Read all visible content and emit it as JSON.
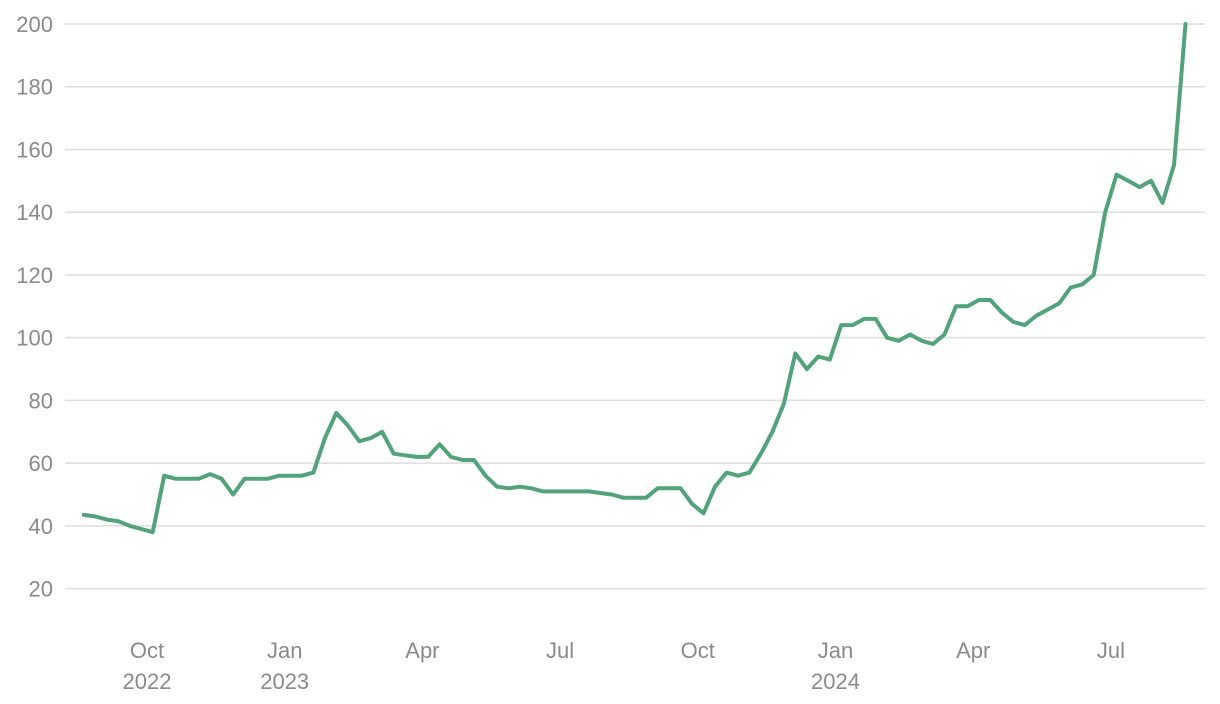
{
  "chart_data": {
    "type": "line",
    "x": [
      "2022-08",
      "2022-08",
      "2022-08",
      "2022-08",
      "2022-09",
      "2022-09",
      "2022-09",
      "2022-09",
      "2022-10",
      "2022-10",
      "2022-10",
      "2022-10",
      "2022-11",
      "2022-11",
      "2022-11",
      "2022-11",
      "2022-12",
      "2022-12",
      "2022-12",
      "2022-12",
      "2023-01",
      "2023-01",
      "2023-01",
      "2023-01",
      "2023-02",
      "2023-02",
      "2023-02",
      "2023-02",
      "2023-03",
      "2023-03",
      "2023-03",
      "2023-03",
      "2023-04",
      "2023-04",
      "2023-04",
      "2023-04",
      "2023-05",
      "2023-05",
      "2023-05",
      "2023-05",
      "2023-06",
      "2023-06",
      "2023-06",
      "2023-06",
      "2023-07",
      "2023-07",
      "2023-07",
      "2023-07",
      "2023-08",
      "2023-08",
      "2023-08",
      "2023-08",
      "2023-09",
      "2023-09",
      "2023-09",
      "2023-09",
      "2023-10",
      "2023-10",
      "2023-10",
      "2023-10",
      "2023-11",
      "2023-11",
      "2023-11",
      "2023-11",
      "2023-12",
      "2023-12",
      "2023-12",
      "2023-12",
      "2024-01",
      "2024-01",
      "2024-01",
      "2024-01",
      "2024-02",
      "2024-02",
      "2024-02",
      "2024-02",
      "2024-03",
      "2024-03",
      "2024-03",
      "2024-03",
      "2024-04",
      "2024-04",
      "2024-04",
      "2024-04",
      "2024-05",
      "2024-05",
      "2024-05",
      "2024-05",
      "2024-06",
      "2024-06",
      "2024-06",
      "2024-06",
      "2024-07",
      "2024-07",
      "2024-07",
      "2024-07",
      "2024-08",
      "2024-08",
      "2024-08",
      "2024-08"
    ],
    "series": [
      {
        "color": "#52a37c",
        "values": [
          null,
          null,
          43.5,
          43,
          42,
          41.5,
          40,
          39,
          38,
          56,
          55,
          55,
          55,
          56.5,
          55,
          50,
          55,
          55,
          55,
          56,
          56,
          56,
          57,
          68,
          76,
          72,
          67,
          68,
          70,
          63,
          62.5,
          62,
          62,
          66,
          62,
          61,
          61,
          56,
          52.5,
          52,
          52.5,
          52,
          51,
          51,
          51,
          51,
          51,
          50.5,
          50,
          49,
          49,
          49,
          52,
          52,
          52,
          47,
          44,
          52.5,
          57,
          56,
          57,
          63,
          70,
          79,
          95,
          90,
          94,
          93,
          104,
          104,
          106,
          106,
          100,
          99,
          101,
          99,
          98,
          101,
          110,
          110,
          112,
          112,
          108,
          105,
          104,
          107,
          109,
          111,
          116,
          117,
          120,
          140,
          152,
          150,
          148,
          150,
          143,
          155,
          200,
          null
        ]
      }
    ],
    "ylim": [
      10,
      200
    ],
    "yticks": [
      20,
      40,
      60,
      80,
      100,
      120,
      140,
      160,
      180,
      200
    ],
    "xticks": [
      {
        "value": "2022-10",
        "label": [
          "Oct",
          "2022"
        ]
      },
      {
        "value": "2023-01",
        "label": [
          "Jan",
          "2023"
        ]
      },
      {
        "value": "2023-04",
        "label": [
          "Apr"
        ]
      },
      {
        "value": "2023-07",
        "label": [
          "Jul"
        ]
      },
      {
        "value": "2023-10",
        "label": [
          "Oct"
        ]
      },
      {
        "value": "2024-01",
        "label": [
          "Jan",
          "2024"
        ]
      },
      {
        "value": "2024-04",
        "label": [
          "Apr"
        ]
      },
      {
        "value": "2024-07",
        "label": [
          "Jul"
        ]
      }
    ],
    "grid": true
  }
}
